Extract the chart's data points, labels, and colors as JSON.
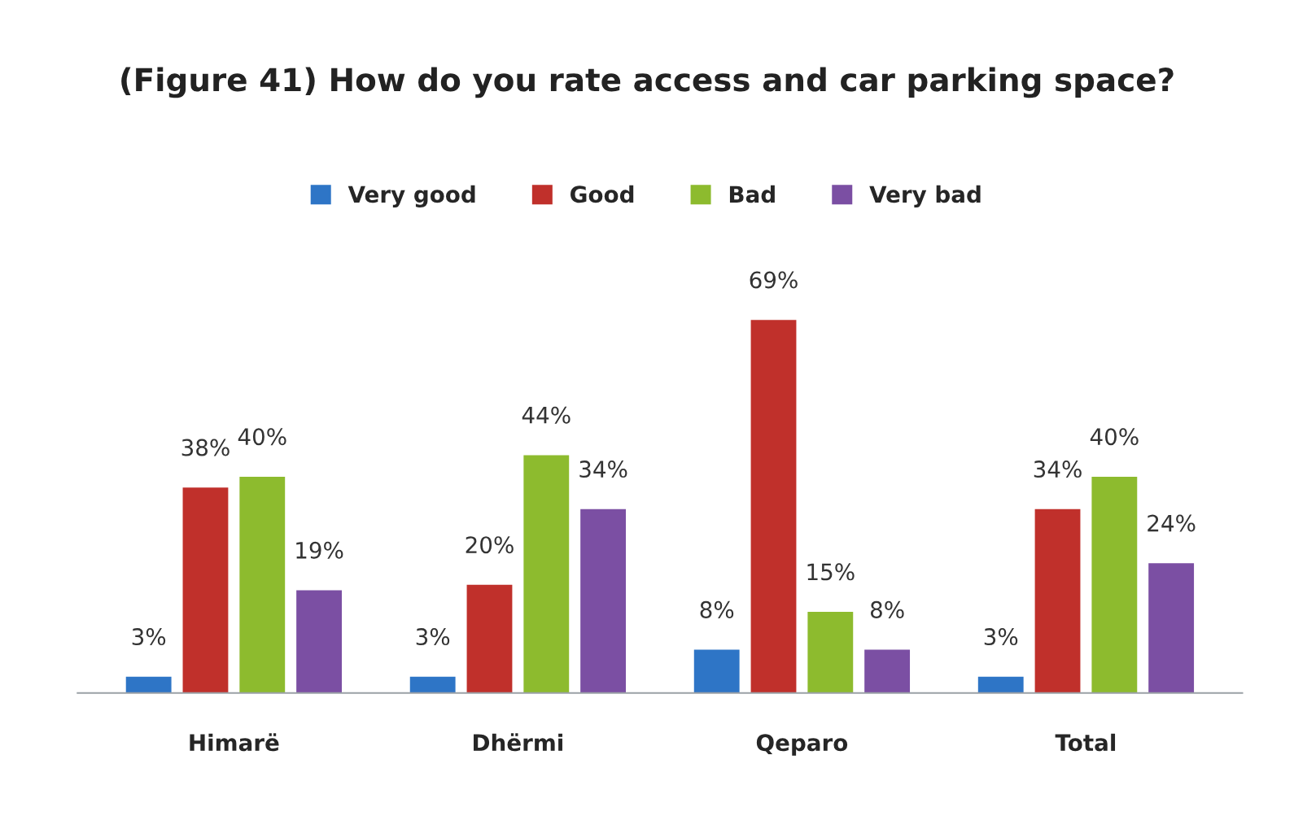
{
  "chart_data": {
    "type": "bar",
    "title": "(Figure 41) How do you rate access and car parking space?",
    "categories": [
      "Himarë",
      "Dhërmi",
      "Qeparo",
      "Total"
    ],
    "series": [
      {
        "name": "Very good",
        "color": "#2e75c6",
        "values": [
          3,
          3,
          8,
          3
        ],
        "value_labels": [
          "3%",
          "3%",
          "8%",
          "3%"
        ]
      },
      {
        "name": "Good",
        "color": "#c0302b",
        "values": [
          38,
          20,
          69,
          34
        ],
        "value_labels": [
          "38%",
          "20%",
          "69%",
          "34%"
        ]
      },
      {
        "name": "Bad",
        "color": "#8dbb2e",
        "values": [
          40,
          44,
          15,
          40
        ],
        "value_labels": [
          "40%",
          "44%",
          "15%",
          "40%"
        ]
      },
      {
        "name": "Very bad",
        "color": "#7b4fa3",
        "values": [
          19,
          34,
          8,
          24
        ],
        "value_labels": [
          "19%",
          "34%",
          "8%",
          "24%"
        ]
      }
    ],
    "legend": "top",
    "grid": false,
    "tick_labels": "x"
  }
}
